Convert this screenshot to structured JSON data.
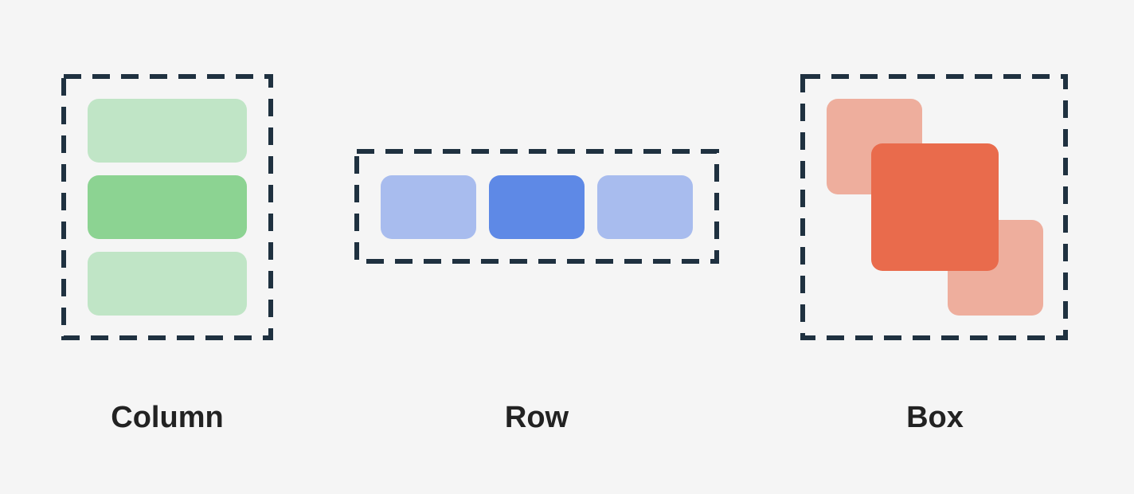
{
  "labels": {
    "column": "Column",
    "row": "Row",
    "box": "Box"
  },
  "colors": {
    "background": "#f5f5f5",
    "border": "#1f3140",
    "green_light": "#c0e5c6",
    "green": "#8cd392",
    "blue_light": "#a8bcee",
    "blue": "#5e89e6",
    "orange_light": "#eeae9d",
    "orange": "#e96b4c"
  }
}
